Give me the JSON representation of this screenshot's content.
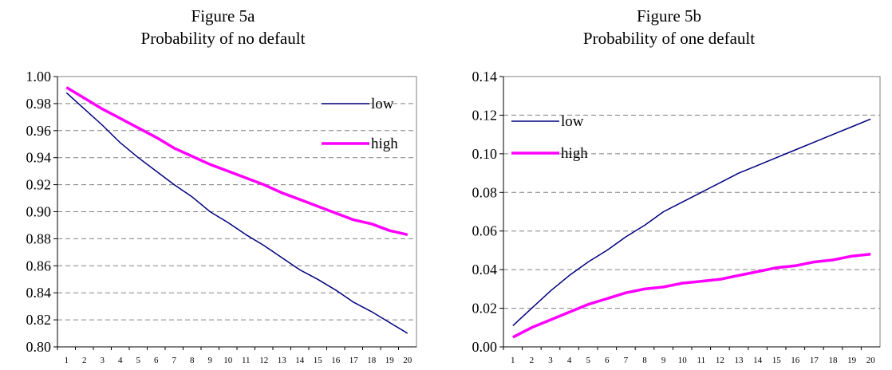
{
  "colors": {
    "low": "#00007f",
    "high": "#ff00ff",
    "grid": "#808080",
    "frame": "#808080"
  },
  "chart_data": [
    {
      "type": "line",
      "title": "Figure 5a",
      "subtitle": "Probability of no default",
      "xlabel": "",
      "ylabel": "",
      "x": [
        1,
        2,
        3,
        4,
        5,
        6,
        7,
        8,
        9,
        10,
        11,
        12,
        13,
        14,
        15,
        16,
        17,
        18,
        19,
        20
      ],
      "ylim": [
        0.8,
        1.0
      ],
      "yticks": [
        "0.80",
        "0.82",
        "0.84",
        "0.86",
        "0.88",
        "0.90",
        "0.92",
        "0.94",
        "0.96",
        "0.98",
        "1.00"
      ],
      "grid": true,
      "legend_position": "top-right",
      "series": [
        {
          "name": "low",
          "values": [
            0.988,
            0.976,
            0.964,
            0.951,
            0.94,
            0.93,
            0.92,
            0.911,
            0.9,
            0.892,
            0.883,
            0.875,
            0.866,
            0.857,
            0.85,
            0.842,
            0.833,
            0.826,
            0.818,
            0.81
          ]
        },
        {
          "name": "high",
          "values": [
            0.992,
            0.984,
            0.976,
            0.969,
            0.962,
            0.955,
            0.947,
            0.941,
            0.935,
            0.93,
            0.925,
            0.92,
            0.914,
            0.909,
            0.904,
            0.899,
            0.894,
            0.891,
            0.886,
            0.883
          ]
        }
      ]
    },
    {
      "type": "line",
      "title": "Figure 5b",
      "subtitle": "Probability of one default",
      "xlabel": "",
      "ylabel": "",
      "x": [
        1,
        2,
        3,
        4,
        5,
        6,
        7,
        8,
        9,
        10,
        11,
        12,
        13,
        14,
        15,
        16,
        17,
        18,
        19,
        20
      ],
      "ylim": [
        0.0,
        0.14
      ],
      "yticks": [
        "0.00",
        "0.02",
        "0.04",
        "0.06",
        "0.08",
        "0.10",
        "0.12",
        "0.14"
      ],
      "grid": true,
      "legend_position": "top-left",
      "series": [
        {
          "name": "low",
          "values": [
            0.011,
            0.02,
            0.029,
            0.037,
            0.044,
            0.05,
            0.057,
            0.063,
            0.07,
            0.075,
            0.08,
            0.085,
            0.09,
            0.094,
            0.098,
            0.102,
            0.106,
            0.11,
            0.114,
            0.118
          ]
        },
        {
          "name": "high",
          "values": [
            0.005,
            0.01,
            0.014,
            0.018,
            0.022,
            0.025,
            0.028,
            0.03,
            0.031,
            0.033,
            0.034,
            0.035,
            0.037,
            0.039,
            0.041,
            0.042,
            0.044,
            0.045,
            0.047,
            0.048
          ]
        }
      ]
    }
  ]
}
